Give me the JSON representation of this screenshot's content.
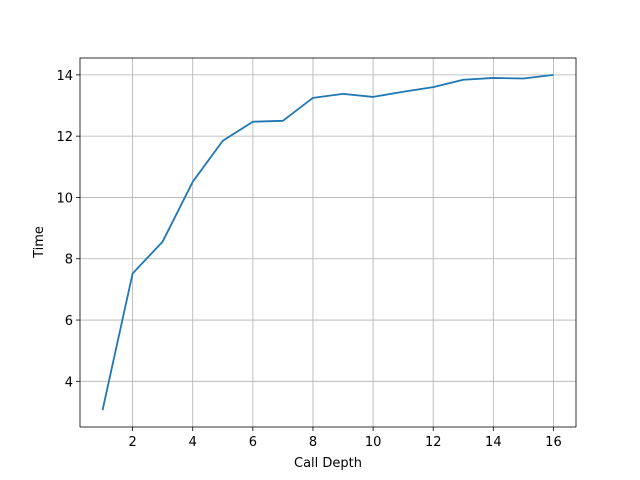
{
  "chart_data": {
    "type": "line",
    "x_label": "Call Depth",
    "y_label": "Time",
    "x": [
      1,
      2,
      3,
      4,
      5,
      6,
      7,
      8,
      9,
      10,
      11,
      12,
      13,
      14,
      15,
      16
    ],
    "series": [
      {
        "color": "#1f77b4",
        "values": [
          3.06,
          7.52,
          8.56,
          10.51,
          11.85,
          12.47,
          12.5,
          13.25,
          13.38,
          13.28,
          13.45,
          13.6,
          13.84,
          13.9,
          13.88,
          14.0
        ]
      }
    ],
    "xlim": [
      0.25,
      16.75
    ],
    "xticks": [
      2,
      4,
      6,
      8,
      10,
      12,
      14,
      16
    ],
    "ylim": [
      2.51,
      14.55
    ],
    "yticks": [
      4,
      6,
      8,
      10,
      12,
      14
    ],
    "grid": true
  }
}
